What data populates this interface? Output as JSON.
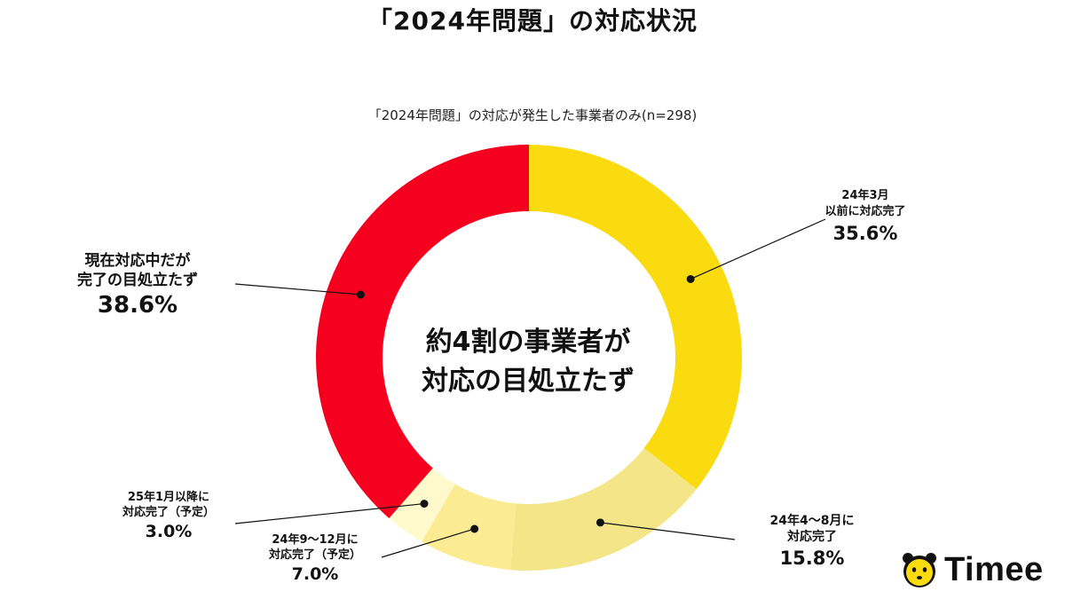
{
  "title": "「2024年問題」の対応状況",
  "subtitle": "「2024年問題」の対応が発生した事業者のみ(n=298)",
  "center_text": [
    "約4割の事業者が",
    "対応の目処立たず"
  ],
  "colors": [
    "#fadb10",
    "#f4e688",
    "#fbec94",
    "#fff9cc",
    "#f5001e"
  ],
  "chart_data": {
    "type": "pie",
    "donut": true,
    "slices": [
      {
        "label_lines": [
          "24年3月",
          "以前に対応完了"
        ],
        "value": 35.6,
        "value_label": "35.6%",
        "color": "#fadb10"
      },
      {
        "label_lines": [
          "24年4〜8月に",
          "対応完了"
        ],
        "value": 15.8,
        "value_label": "15.8%",
        "color": "#f4e688"
      },
      {
        "label_lines": [
          "24年9〜12月に",
          "対応完了（予定）"
        ],
        "value": 7.0,
        "value_label": "7.0%",
        "color": "#fbec94"
      },
      {
        "label_lines": [
          "25年1月以降に",
          "対応完了（予定）"
        ],
        "value": 3.0,
        "value_label": "3.0%",
        "color": "#fff9cc"
      },
      {
        "label_lines": [
          "現在対応中だが",
          "完了の目処立たず"
        ],
        "value": 38.6,
        "value_label": "38.6%",
        "color": "#f5001e"
      }
    ]
  },
  "logo": {
    "text": "Timee",
    "icon": "timee-mascot-icon"
  }
}
